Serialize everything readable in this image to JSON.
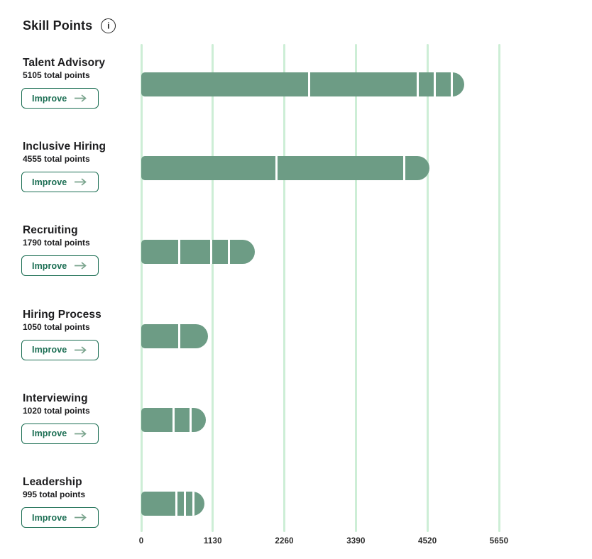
{
  "header": {
    "title": "Skill Points"
  },
  "colors": {
    "bar": "#6d9c85",
    "gridline": "#cdeed6",
    "accent_dark": "#1b6e53",
    "arrow_green": "#7aa48d",
    "text_dark": "#1d1d1f"
  },
  "rows": [
    {
      "name": "Talent Advisory",
      "total_label": "5105 total points",
      "button": "Improve"
    },
    {
      "name": "Inclusive Hiring",
      "total_label": "4555 total points",
      "button": "Improve"
    },
    {
      "name": "Recruiting",
      "total_label": "1790 total points",
      "button": "Improve"
    },
    {
      "name": "Hiring Process",
      "total_label": "1050 total points",
      "button": "Improve"
    },
    {
      "name": "Interviewing",
      "total_label": "1020 total points",
      "button": "Improve"
    },
    {
      "name": "Leadership",
      "total_label": "995 total points",
      "button": "Improve"
    }
  ],
  "chart_data": {
    "type": "bar",
    "orientation": "horizontal",
    "title": "Skill Points",
    "xlabel": "",
    "ylabel": "",
    "unit": "points",
    "grid": true,
    "xlim": [
      0,
      5650
    ],
    "x_ticks": [
      0,
      1130,
      2260,
      3390,
      4520,
      5650
    ],
    "categories": [
      "Talent Advisory",
      "Inclusive Hiring",
      "Recruiting",
      "Hiring Process",
      "Interviewing",
      "Leadership"
    ],
    "totals": [
      5105,
      4555,
      1790,
      1050,
      1020,
      995
    ],
    "segments": [
      [
        2650,
        1715,
        270,
        270,
        200
      ],
      [
        2130,
        2020,
        405
      ],
      [
        595,
        505,
        290,
        400
      ],
      [
        605,
        445
      ],
      [
        515,
        260,
        245
      ],
      [
        550,
        135,
        135,
        175
      ]
    ]
  }
}
